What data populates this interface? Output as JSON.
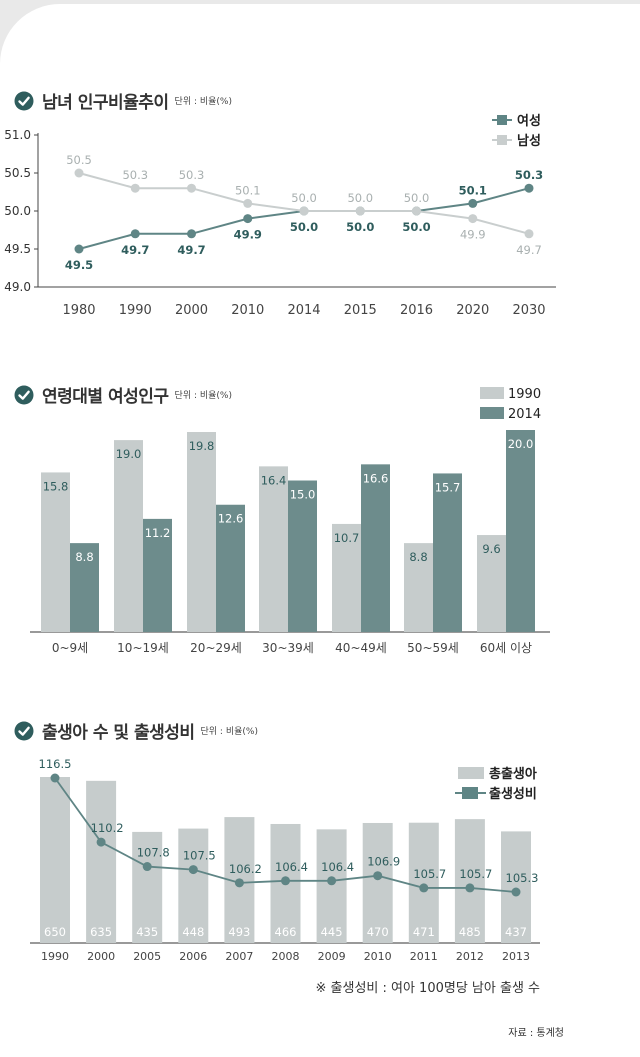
{
  "colors": {
    "female": "#5f8585",
    "male": "#c9cece",
    "bar_dark": "#6d8c8c",
    "bar_light": "#c6cccc",
    "title_check": "#2f5d5d"
  },
  "charts": {
    "gender": {
      "title": "남녀 인구비율추이",
      "unit": "단위 : 비율(%)"
    },
    "age": {
      "title": "연령대별 여성인구",
      "unit": "단위 : 비율(%)"
    },
    "birth": {
      "title": "출생아 수 및 출생성비",
      "unit": "단위 : 비율(%)"
    }
  },
  "note": "※ 출생성비 : 여아 100명당 남아 출생 수",
  "source": "자료 : 통계청",
  "chart_data": [
    {
      "type": "line",
      "title": "남녀 인구비율추이",
      "categories": [
        "1980",
        "1990",
        "2000",
        "2010",
        "2014",
        "2015",
        "2016",
        "2020",
        "2030"
      ],
      "series": [
        {
          "name": "여성",
          "values": [
            49.5,
            49.7,
            49.7,
            49.9,
            50.0,
            50.0,
            50.0,
            50.1,
            50.3
          ]
        },
        {
          "name": "남성",
          "values": [
            50.5,
            50.3,
            50.3,
            50.1,
            50.0,
            50.0,
            50.0,
            49.9,
            49.7
          ]
        }
      ],
      "ylim": [
        49.0,
        51.0
      ],
      "yticks": [
        "51.0",
        "50.5",
        "50.0",
        "49.5",
        "49.0"
      ],
      "legend": "top-right"
    },
    {
      "type": "bar",
      "title": "연령대별 여성인구",
      "categories": [
        "0~9세",
        "10~19세",
        "20~29세",
        "30~39세",
        "40~49세",
        "50~59세",
        "60세 이상"
      ],
      "series": [
        {
          "name": "1990",
          "values": [
            15.8,
            19.0,
            19.8,
            16.4,
            10.7,
            8.8,
            9.6
          ]
        },
        {
          "name": "2014",
          "values": [
            8.8,
            11.2,
            12.6,
            15.0,
            16.6,
            15.7,
            20.0
          ]
        }
      ],
      "ylim": [
        0,
        20.5
      ],
      "legend": "top-right"
    },
    {
      "type": "bar",
      "title": "출생아 수 및 출생성비",
      "categories": [
        "1990",
        "2000",
        "2005",
        "2006",
        "2007",
        "2008",
        "2009",
        "2010",
        "2011",
        "2012",
        "2013"
      ],
      "series": [
        {
          "name": "총출생아",
          "type": "bar",
          "values": [
            650,
            635,
            435,
            448,
            493,
            466,
            445,
            470,
            471,
            485,
            437
          ]
        },
        {
          "name": "출생성비",
          "type": "line",
          "values": [
            116.5,
            110.2,
            107.8,
            107.5,
            106.2,
            106.4,
            106.4,
            106.9,
            105.7,
            105.7,
            105.3
          ]
        }
      ],
      "legend": "top-right"
    }
  ]
}
